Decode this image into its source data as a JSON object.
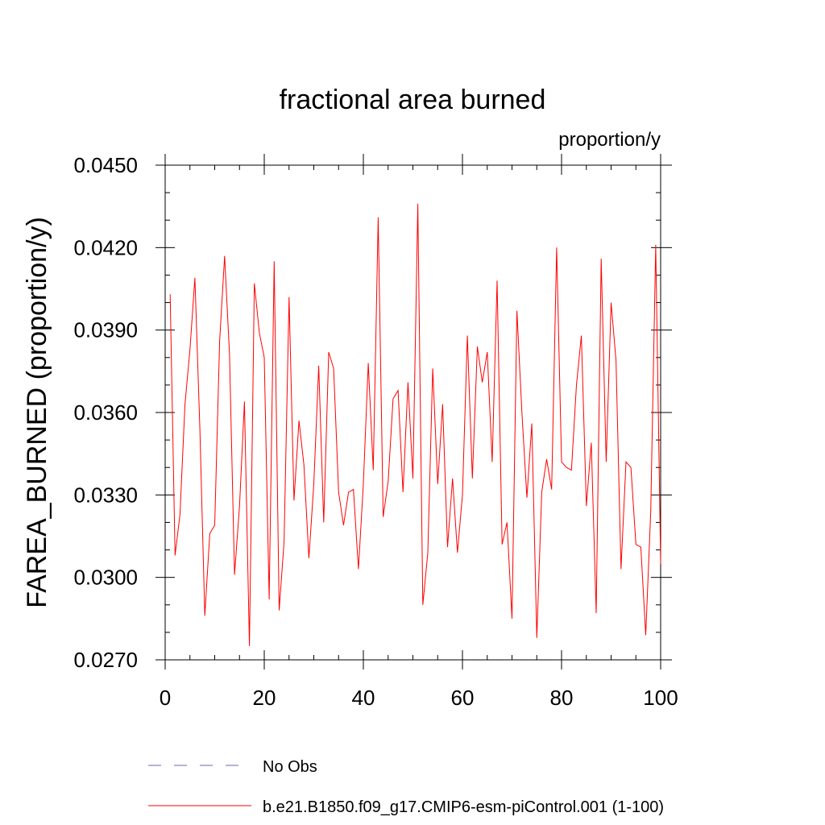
{
  "chart_data": {
    "type": "line",
    "title": "fractional area burned",
    "units": "proportion/y",
    "ylabel": "FAREA_BURNED  (proportion/y)",
    "xlabel": "",
    "xlim": [
      0,
      100
    ],
    "ylim": [
      0.027,
      0.045
    ],
    "xticks": [
      "0",
      "20",
      "40",
      "60",
      "80",
      "100"
    ],
    "yticks": [
      "0.0270",
      "0.0300",
      "0.0330",
      "0.0360",
      "0.0390",
      "0.0420",
      "0.0450"
    ],
    "grid": false,
    "legend_position": "bottom",
    "series": [
      {
        "name": "No Obs",
        "color": "#6666bb",
        "dash": "dashed",
        "x": [],
        "values": []
      },
      {
        "name": "b.e21.B1850.f09_g17.CMIP6-esm-piControl.001 (1-100)",
        "color": "#ff0000",
        "dash": "solid",
        "x": [
          1,
          2,
          3,
          4,
          5,
          6,
          7,
          8,
          9,
          10,
          11,
          12,
          13,
          14,
          15,
          16,
          17,
          18,
          19,
          20,
          21,
          22,
          23,
          24,
          25,
          26,
          27,
          28,
          29,
          30,
          31,
          32,
          33,
          34,
          35,
          36,
          37,
          38,
          39,
          40,
          41,
          42,
          43,
          44,
          45,
          46,
          47,
          48,
          49,
          50,
          51,
          52,
          53,
          54,
          55,
          56,
          57,
          58,
          59,
          60,
          61,
          62,
          63,
          64,
          65,
          66,
          67,
          68,
          69,
          70,
          71,
          72,
          73,
          74,
          75,
          76,
          77,
          78,
          79,
          80,
          81,
          82,
          83,
          84,
          85,
          86,
          87,
          88,
          89,
          90,
          91,
          92,
          93,
          94,
          95,
          96,
          97,
          98,
          99,
          100
        ],
        "values": [
          0.0403,
          0.0308,
          0.0323,
          0.0363,
          0.0383,
          0.0409,
          0.0354,
          0.0286,
          0.0316,
          0.0319,
          0.0386,
          0.0417,
          0.0381,
          0.0301,
          0.0326,
          0.0364,
          0.0275,
          0.0407,
          0.0389,
          0.038,
          0.0292,
          0.0415,
          0.0288,
          0.0313,
          0.0402,
          0.0328,
          0.0357,
          0.0341,
          0.0307,
          0.0334,
          0.0377,
          0.032,
          0.0382,
          0.0376,
          0.0331,
          0.0319,
          0.0331,
          0.0332,
          0.0303,
          0.0334,
          0.0378,
          0.0339,
          0.0431,
          0.0322,
          0.0335,
          0.0365,
          0.0368,
          0.0331,
          0.0371,
          0.0336,
          0.0436,
          0.029,
          0.0309,
          0.0376,
          0.0334,
          0.0363,
          0.0311,
          0.0336,
          0.0309,
          0.033,
          0.0388,
          0.0336,
          0.0384,
          0.0371,
          0.0382,
          0.0342,
          0.0408,
          0.0312,
          0.032,
          0.0285,
          0.0397,
          0.036,
          0.0329,
          0.0356,
          0.0278,
          0.0331,
          0.0343,
          0.0332,
          0.042,
          0.0342,
          0.034,
          0.0339,
          0.037,
          0.0388,
          0.0326,
          0.0349,
          0.0287,
          0.0416,
          0.0342,
          0.04,
          0.0379,
          0.0303,
          0.0342,
          0.034,
          0.0312,
          0.0311,
          0.0279,
          0.0324,
          0.0421,
          0.0305
        ]
      }
    ]
  }
}
